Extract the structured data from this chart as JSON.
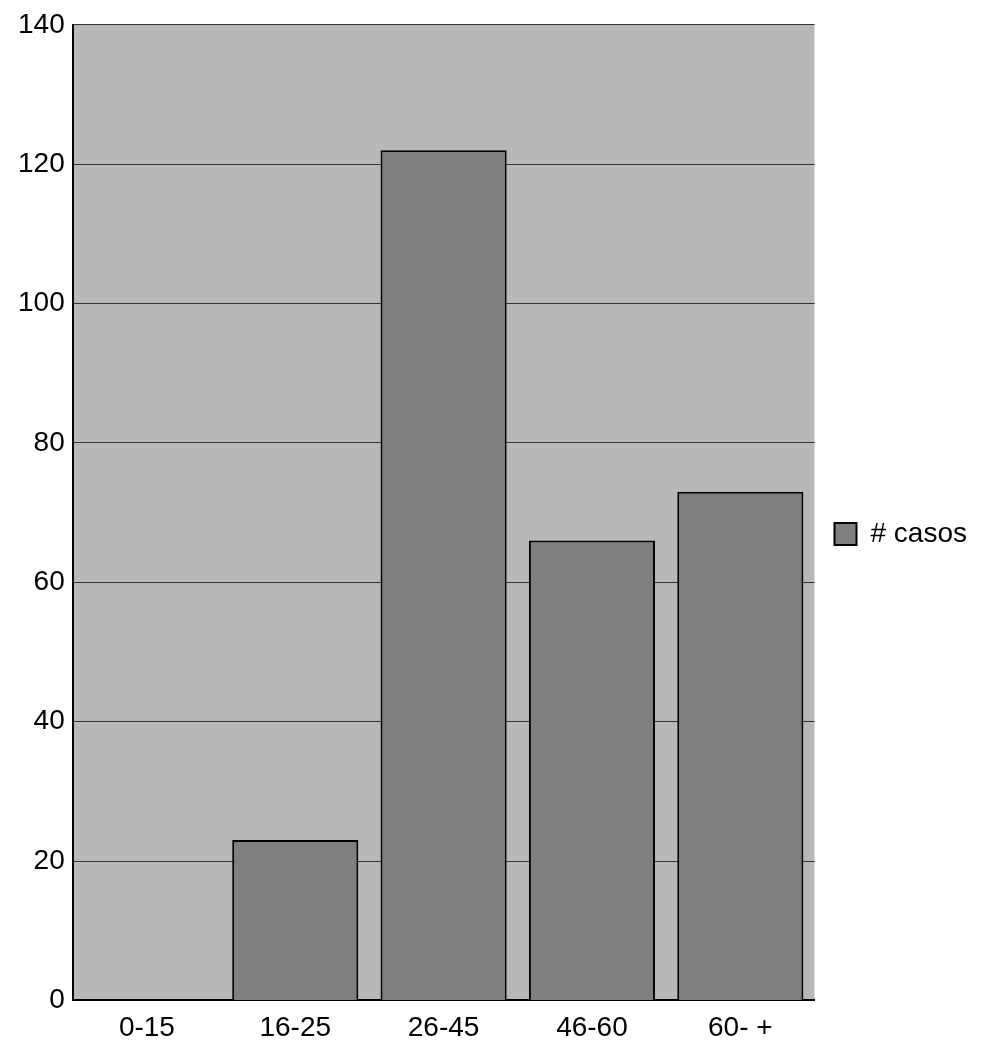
{
  "chart_data": {
    "type": "bar",
    "categories": [
      "0-15",
      "16-25",
      "26-45",
      "46-60",
      "60- +"
    ],
    "series": [
      {
        "name": "# casos",
        "color": "#7f7f7f",
        "values": [
          0,
          23,
          122,
          66,
          73
        ]
      }
    ],
    "ylim": [
      0,
      140
    ],
    "yticks": [
      0,
      20,
      40,
      60,
      80,
      100,
      120,
      140
    ],
    "grid": "y",
    "legend": "right"
  }
}
